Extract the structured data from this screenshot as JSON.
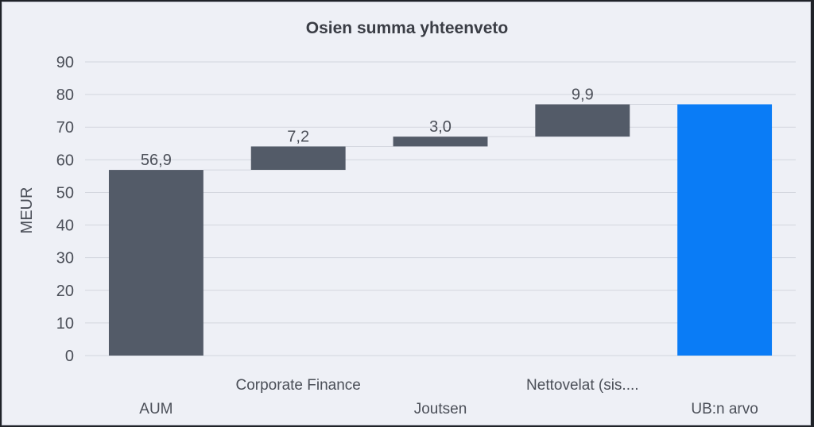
{
  "chart_data": {
    "type": "bar",
    "subtype": "waterfall",
    "title": "Osien summa yhteenveto",
    "xlabel": "",
    "ylabel": "MEUR",
    "ylim": [
      0,
      90
    ],
    "yticks": [
      "0",
      "10",
      "20",
      "30",
      "40",
      "50",
      "60",
      "70",
      "80",
      "90"
    ],
    "grid": true,
    "legend": "none",
    "categories": [
      "AUM",
      "Corporate Finance",
      "Joutsen",
      "Nettovelat (sis....",
      "UB:n arvo"
    ],
    "values": [
      56.9,
      7.2,
      3.0,
      9.9,
      77.0
    ],
    "data_labels": [
      "56,9",
      "7,2",
      "3,0",
      "9,9",
      ""
    ],
    "bar_kind": [
      "increase",
      "increase",
      "increase",
      "increase",
      "total"
    ],
    "colors": {
      "increase": "#535b68",
      "total": "#0a7cf6"
    }
  }
}
